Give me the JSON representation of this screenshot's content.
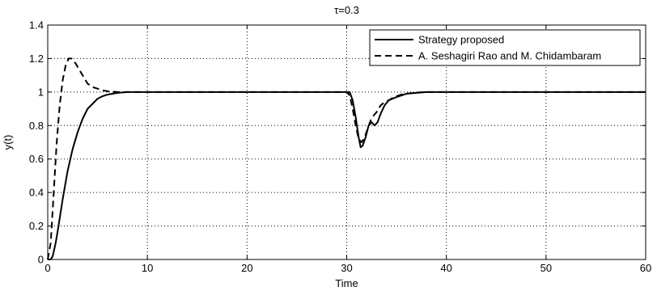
{
  "chart_data": {
    "type": "line",
    "title": "τ=0.3",
    "xlabel": "Time",
    "ylabel": "y(t)",
    "xlim": [
      0,
      60
    ],
    "ylim": [
      0,
      1.4
    ],
    "xticks": [
      0,
      10,
      20,
      30,
      40,
      50,
      60
    ],
    "yticks": [
      0,
      0.2,
      0.4,
      0.6,
      0.8,
      1,
      1.2,
      1.4
    ],
    "xtick_labels": [
      "0",
      "10",
      "20",
      "30",
      "40",
      "50",
      "60"
    ],
    "ytick_labels": [
      "0",
      "0.2",
      "0.4",
      "0.6",
      "0.8",
      "1",
      "1.2",
      "1.4"
    ],
    "grid": true,
    "legend_position": "top-right",
    "series": [
      {
        "name": "Strategy proposed",
        "style": "solid",
        "color": "#000000",
        "x": [
          0,
          0.3,
          0.5,
          0.8,
          1,
          1.5,
          2,
          2.5,
          3,
          3.5,
          4,
          4.5,
          5,
          5.5,
          6,
          7,
          8,
          10,
          20,
          30,
          30.3,
          30.6,
          30.9,
          31.2,
          31.4,
          31.6,
          31.9,
          32.2,
          32.5,
          32.8,
          33.1,
          33.4,
          33.8,
          34.2,
          34.6,
          35,
          35.5,
          36,
          37,
          38,
          39,
          40,
          50,
          60
        ],
        "values": [
          0,
          0,
          0.02,
          0.1,
          0.17,
          0.36,
          0.53,
          0.66,
          0.76,
          0.84,
          0.9,
          0.93,
          0.96,
          0.975,
          0.985,
          0.995,
          1.0,
          1.0,
          1.0,
          1.0,
          1.0,
          0.95,
          0.85,
          0.73,
          0.67,
          0.68,
          0.73,
          0.8,
          0.82,
          0.8,
          0.82,
          0.87,
          0.92,
          0.95,
          0.96,
          0.97,
          0.98,
          0.99,
          0.995,
          1.0,
          1.0,
          1.0,
          1.0,
          1.0
        ]
      },
      {
        "name": "A. Seshagiri Rao and M. Chidambaram",
        "style": "dashed",
        "color": "#000000",
        "x": [
          0,
          0.3,
          0.6,
          0.9,
          1.2,
          1.5,
          1.8,
          2.1,
          2.4,
          2.7,
          3,
          3.5,
          4,
          4.5,
          5,
          5.5,
          6,
          7,
          8,
          10,
          20,
          30,
          30.3,
          30.6,
          30.9,
          31.2,
          31.5,
          31.8,
          32.1,
          32.4,
          32.7,
          33,
          33.4,
          33.8,
          34.2,
          34.6,
          35,
          35.5,
          36,
          37,
          38,
          40,
          50,
          60
        ],
        "values": [
          0,
          0.1,
          0.4,
          0.7,
          0.92,
          1.07,
          1.16,
          1.2,
          1.2,
          1.18,
          1.15,
          1.1,
          1.05,
          1.03,
          1.02,
          1.01,
          1.005,
          1.0,
          1.0,
          1.0,
          1.0,
          1.0,
          0.98,
          0.9,
          0.8,
          0.72,
          0.7,
          0.73,
          0.78,
          0.83,
          0.86,
          0.88,
          0.92,
          0.94,
          0.95,
          0.965,
          0.975,
          0.985,
          0.99,
          0.997,
          1.0,
          1.0,
          1.0,
          1.0
        ]
      }
    ]
  }
}
